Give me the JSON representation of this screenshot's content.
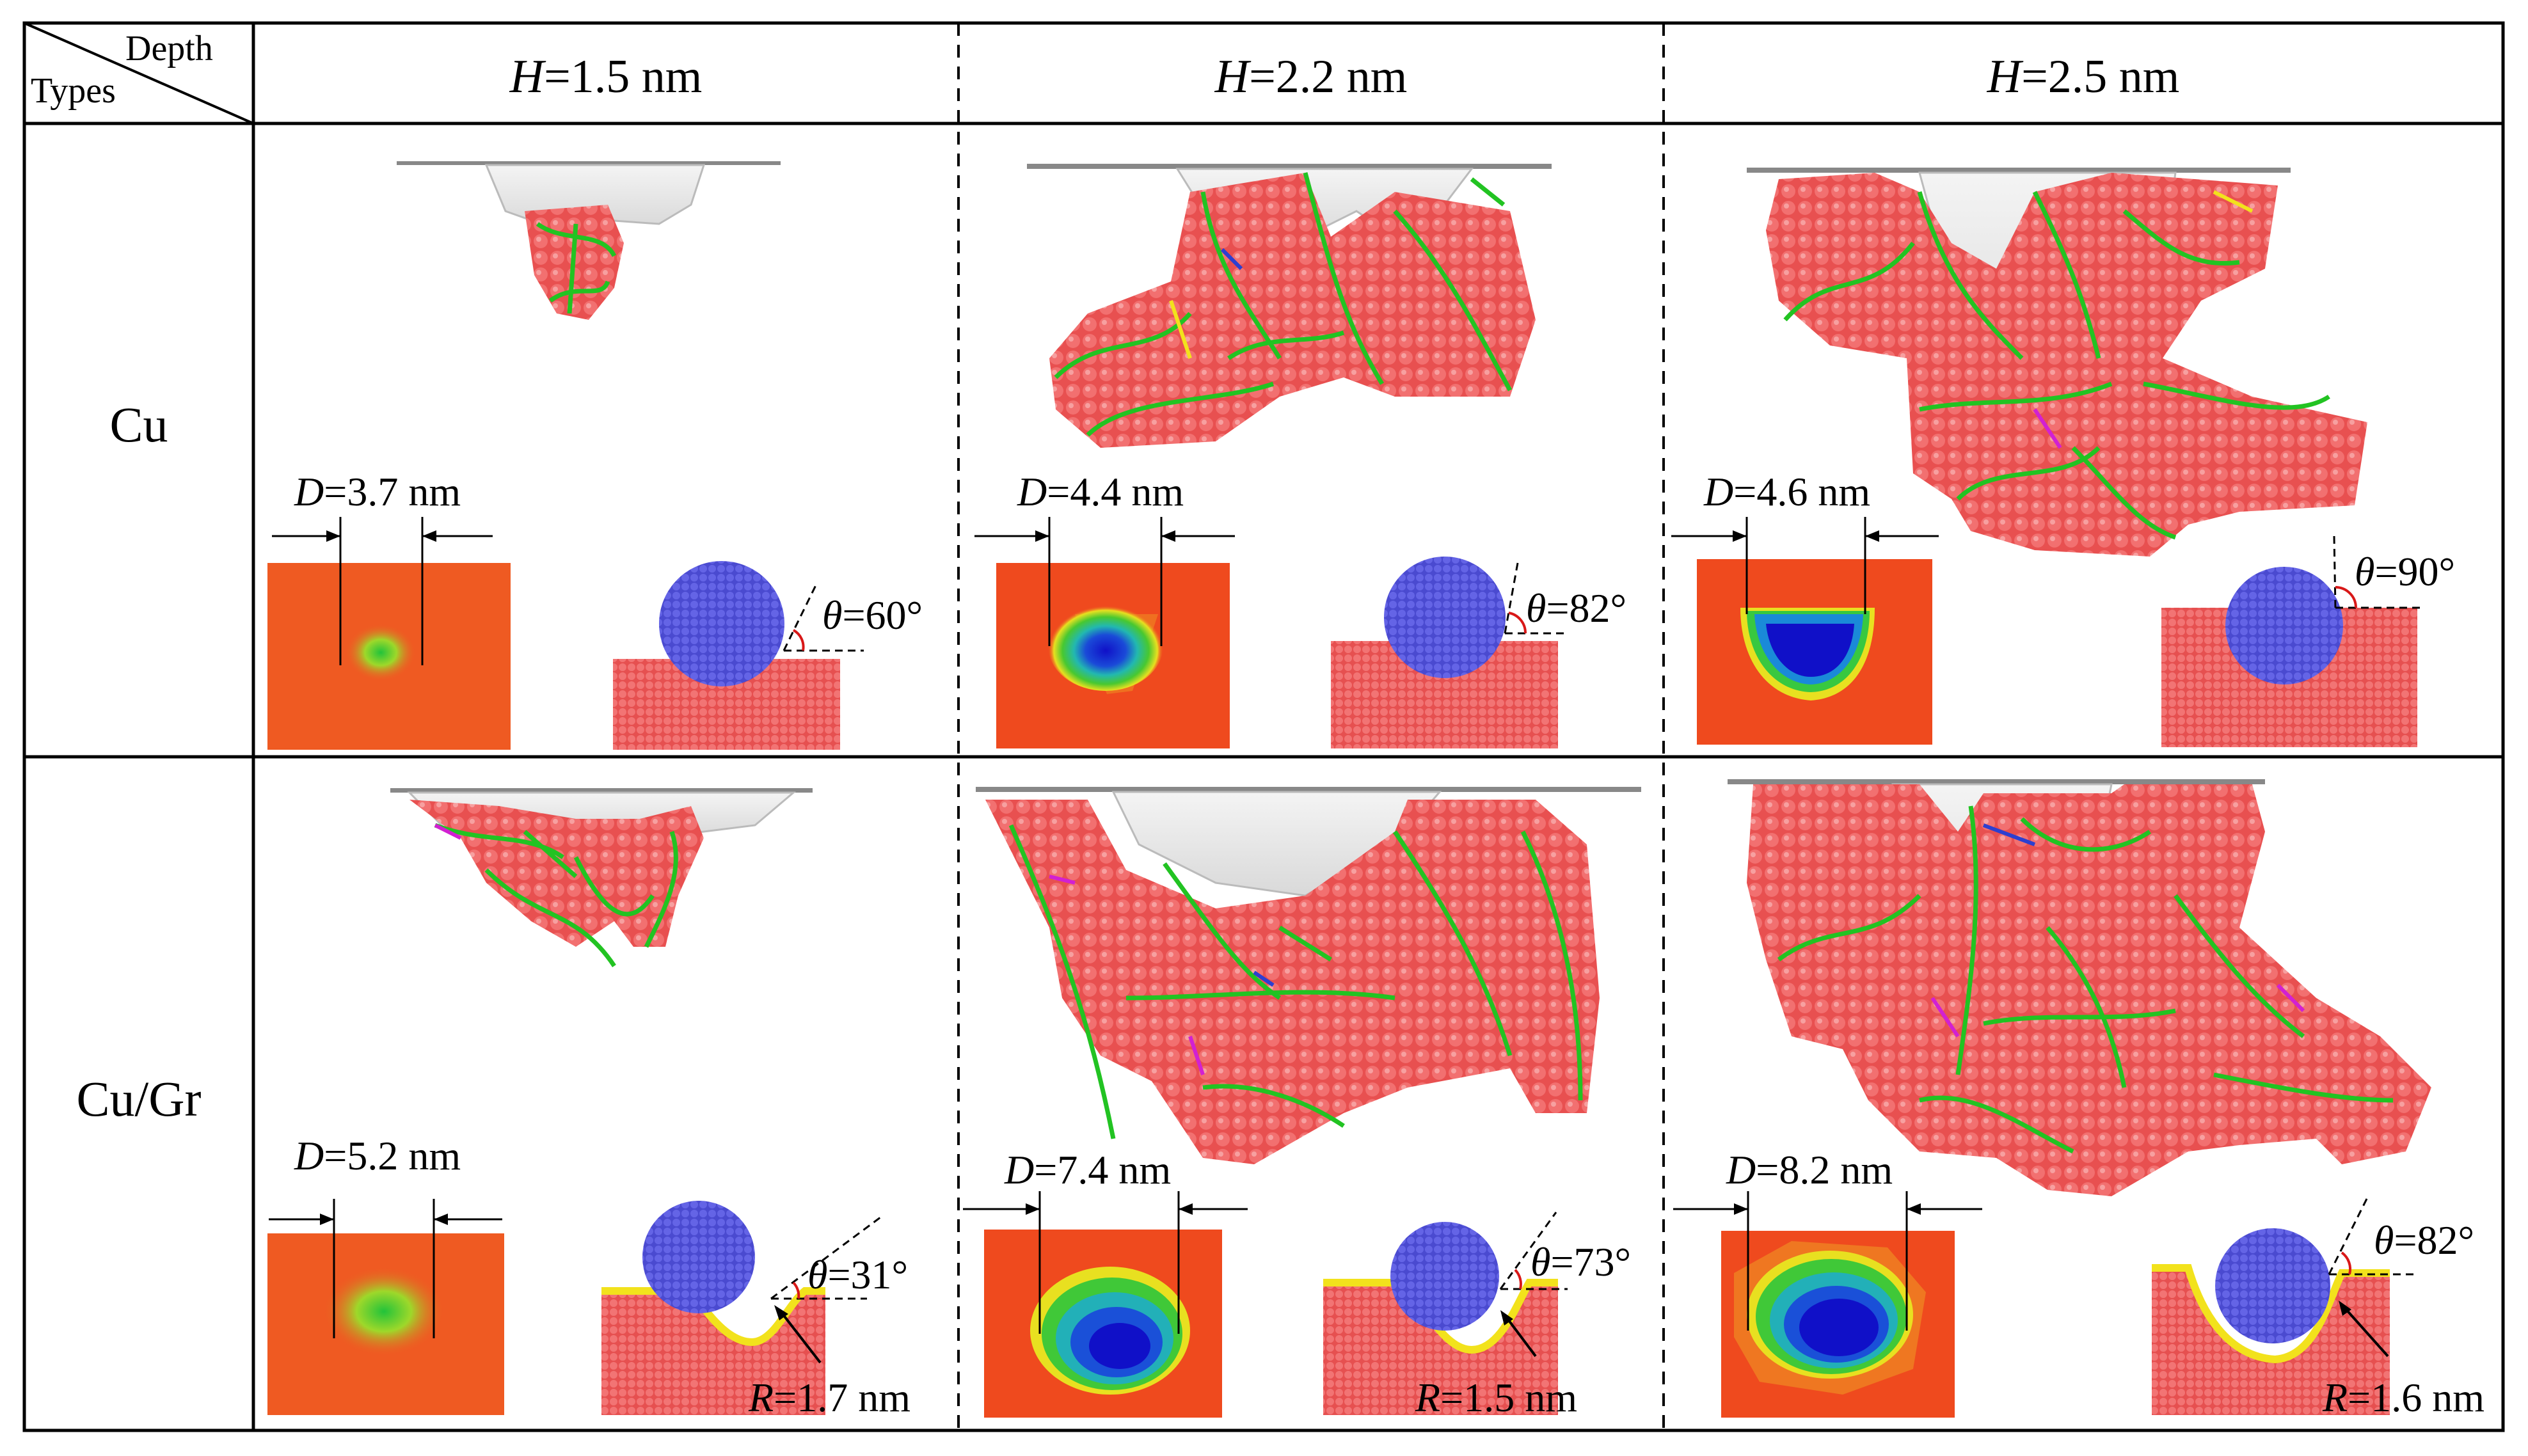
{
  "header": {
    "corner_top": "Depth",
    "corner_bottom": "Types",
    "columns": [
      {
        "var": "H",
        "rest": "=1.5 nm"
      },
      {
        "var": "H",
        "rest": "=2.2 nm"
      },
      {
        "var": "H",
        "rest": "=2.5 nm"
      }
    ]
  },
  "rows": [
    {
      "type": "Cu",
      "cells": [
        {
          "D": {
            "var": "D",
            "rest": "=3.7 nm"
          },
          "theta": {
            "var": "θ",
            "rest": "=60°"
          }
        },
        {
          "D": {
            "var": "D",
            "rest": "=4.4 nm"
          },
          "theta": {
            "var": "θ",
            "rest": "=82°"
          }
        },
        {
          "D": {
            "var": "D",
            "rest": "=4.6 nm"
          },
          "theta": {
            "var": "θ",
            "rest": "=90°"
          }
        }
      ]
    },
    {
      "type": "Cu/Gr",
      "cells": [
        {
          "D": {
            "var": "D",
            "rest": "=5.2 nm"
          },
          "theta": {
            "var": "θ",
            "rest": "=31°"
          },
          "R": {
            "var": "R",
            "rest": "=1.7 nm"
          }
        },
        {
          "D": {
            "var": "D",
            "rest": "=7.4 nm"
          },
          "theta": {
            "var": "θ",
            "rest": "=73°"
          },
          "R": {
            "var": "R",
            "rest": "=1.5 nm"
          }
        },
        {
          "D": {
            "var": "D",
            "rest": "=8.2 nm"
          },
          "theta": {
            "var": "θ",
            "rest": "=82°"
          },
          "R": {
            "var": "R",
            "rest": "=1.6 nm"
          }
        }
      ]
    }
  ],
  "colors": {
    "cu_atoms": "#ee5a5a",
    "dislocation": "#22c322",
    "surface": "#e8e8e8",
    "indenter": "#5b5bd9",
    "graphene": "#f2e21c",
    "depth_map_bg": "#ef5a22",
    "depth_map_mid": "#22c33a",
    "depth_map_deep": "#1a1ad0"
  }
}
